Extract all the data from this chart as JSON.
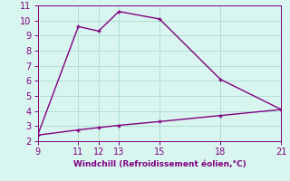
{
  "x_upper": [
    9,
    11,
    12,
    13,
    15,
    18,
    21
  ],
  "y_upper": [
    2.4,
    9.6,
    9.3,
    10.6,
    10.1,
    6.1,
    4.1
  ],
  "x_lower": [
    9,
    11,
    12,
    13,
    15,
    18,
    21
  ],
  "y_lower": [
    2.4,
    2.75,
    2.9,
    3.05,
    3.3,
    3.7,
    4.1
  ],
  "line_color": "#800080",
  "bg_color": "#d8f5f0",
  "xlabel": "Windchill (Refroidissement éolien,°C)",
  "xticks": [
    9,
    11,
    12,
    13,
    15,
    18,
    21
  ],
  "yticks": [
    2,
    3,
    4,
    5,
    6,
    7,
    8,
    9,
    10,
    11
  ],
  "xlim": [
    9,
    21
  ],
  "ylim": [
    2,
    11
  ],
  "markersize": 3,
  "linewidth": 1.0,
  "xlabel_color": "#800080",
  "grid_color": "#aaddcc",
  "tick_color": "#800080",
  "tick_labelsize": 7
}
